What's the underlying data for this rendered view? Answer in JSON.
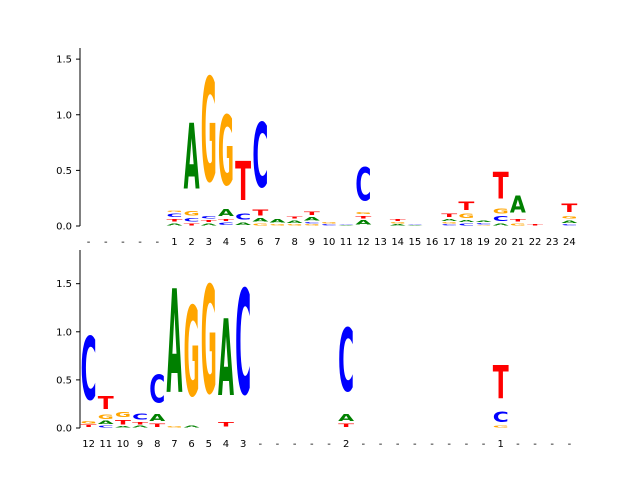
{
  "colors": {
    "A": "#008000",
    "C": "#0000ff",
    "G": "#ffa500",
    "T": "#ff0000",
    "axis": "#000000",
    "background": "#ffffff"
  },
  "chart_data": [
    {
      "type": "sequence-logo",
      "ylim": [
        0,
        1.6
      ],
      "yticks": [
        "0.0",
        "0.5",
        "1.0",
        "1.5"
      ],
      "grid": false,
      "positions": [
        "-",
        "-",
        "-",
        "-",
        "-",
        "1",
        "2",
        "3",
        "4",
        "5",
        "6",
        "7",
        "8",
        "9",
        "10",
        "11",
        "12",
        "13",
        "14",
        "15",
        "16",
        "17",
        "18",
        "19",
        "20",
        "21",
        "22",
        "23",
        "24"
      ],
      "stacks": [
        [],
        [],
        [],
        [],
        [],
        [
          [
            "A",
            0.03
          ],
          [
            "T",
            0.04
          ],
          [
            "C",
            0.05
          ],
          [
            "G",
            0.02
          ]
        ],
        [
          [
            "T",
            0.03
          ],
          [
            "C",
            0.05
          ],
          [
            "G",
            0.06
          ],
          [
            "A",
            0.95
          ]
        ],
        [
          [
            "A",
            0.03
          ],
          [
            "T",
            0.03
          ],
          [
            "C",
            0.04
          ],
          [
            "G",
            1.5
          ]
        ],
        [
          [
            "C",
            0.04
          ],
          [
            "T",
            0.03
          ],
          [
            "A",
            0.1
          ],
          [
            "G",
            1.0
          ]
        ],
        [
          [
            "A",
            0.04
          ],
          [
            "C",
            0.08
          ],
          [
            "T",
            0.56
          ]
        ],
        [
          [
            "G",
            0.03
          ],
          [
            "A",
            0.05
          ],
          [
            "T",
            0.08
          ],
          [
            "C",
            0.93
          ]
        ],
        [
          [
            "G",
            0.02
          ],
          [
            "A",
            0.05
          ]
        ],
        [
          [
            "G",
            0.02
          ],
          [
            "A",
            0.04
          ],
          [
            "T",
            0.03
          ]
        ],
        [
          [
            "G",
            0.02
          ],
          [
            "C",
            0.02
          ],
          [
            "A",
            0.05
          ],
          [
            "T",
            0.05
          ]
        ],
        [
          [
            "C",
            0.02
          ],
          [
            "G",
            0.02
          ]
        ],
        [
          [
            "A",
            0.01
          ],
          [
            "C",
            0.01
          ]
        ],
        [
          [
            "A",
            0.06
          ],
          [
            "T",
            0.04
          ],
          [
            "G",
            0.03
          ],
          [
            "C",
            0.48
          ]
        ],
        [],
        [
          [
            "A",
            0.02
          ],
          [
            "G",
            0.02
          ],
          [
            "T",
            0.03
          ]
        ],
        [
          [
            "A",
            0.01
          ],
          [
            "C",
            0.01
          ]
        ],
        [],
        [
          [
            "C",
            0.02
          ],
          [
            "G",
            0.02
          ],
          [
            "A",
            0.03
          ],
          [
            "T",
            0.05
          ]
        ],
        [
          [
            "C",
            0.03
          ],
          [
            "A",
            0.03
          ],
          [
            "G",
            0.06
          ],
          [
            "T",
            0.12
          ]
        ],
        [
          [
            "G",
            0.01
          ],
          [
            "C",
            0.02
          ],
          [
            "A",
            0.02
          ]
        ],
        [
          [
            "A",
            0.03
          ],
          [
            "C",
            0.07
          ],
          [
            "G",
            0.07
          ],
          [
            "T",
            0.38
          ]
        ],
        [
          [
            "G",
            0.03
          ],
          [
            "T",
            0.04
          ],
          [
            "A",
            0.24
          ]
        ],
        [
          [
            "T",
            0.02
          ]
        ],
        [],
        [
          [
            "C",
            0.02
          ],
          [
            "A",
            0.04
          ],
          [
            "G",
            0.04
          ],
          [
            "T",
            0.12
          ]
        ]
      ]
    },
    {
      "type": "sequence-logo",
      "ylim": [
        0,
        1.85
      ],
      "yticks": [
        "0.0",
        "0.5",
        "1.0",
        "1.5"
      ],
      "grid": false,
      "positions": [
        "12",
        "11",
        "10",
        "9",
        "8",
        "7",
        "6",
        "5",
        "4",
        "3",
        "-",
        "-",
        "-",
        "-",
        "-",
        "2",
        "-",
        "-",
        "-",
        "-",
        "-",
        "-",
        "-",
        "-",
        "1",
        "-",
        "-",
        "-",
        "-"
      ],
      "stacks": [
        [
          [
            "T",
            0.04
          ],
          [
            "G",
            0.04
          ],
          [
            "C",
            1.05
          ]
        ],
        [
          [
            "C",
            0.03
          ],
          [
            "A",
            0.05
          ],
          [
            "G",
            0.07
          ],
          [
            "T",
            0.22
          ]
        ],
        [
          [
            "A",
            0.02
          ],
          [
            "T",
            0.08
          ],
          [
            "G",
            0.08
          ]
        ],
        [
          [
            "A",
            0.03
          ],
          [
            "T",
            0.04
          ],
          [
            "C",
            0.1
          ]
        ],
        [
          [
            "T",
            0.05
          ],
          [
            "A",
            0.12
          ],
          [
            "C",
            0.47
          ]
        ],
        [
          [
            "G",
            0.02
          ],
          [
            "A",
            1.73
          ]
        ],
        [
          [
            "A",
            0.03
          ],
          [
            "G",
            1.5
          ]
        ],
        [
          [
            "G",
            1.8
          ]
        ],
        [
          [
            "T",
            0.08
          ],
          [
            "A",
            1.28
          ]
        ],
        [
          [
            "C",
            1.75
          ]
        ],
        [],
        [],
        [],
        [],
        [],
        [
          [
            "T",
            0.05
          ],
          [
            "A",
            0.12
          ],
          [
            "C",
            1.05
          ]
        ],
        [],
        [],
        [],
        [],
        [],
        [],
        [],
        [],
        [
          [
            "G",
            0.03
          ],
          [
            "C",
            0.17
          ],
          [
            "T",
            0.55
          ]
        ],
        [],
        [],
        [],
        []
      ]
    }
  ]
}
